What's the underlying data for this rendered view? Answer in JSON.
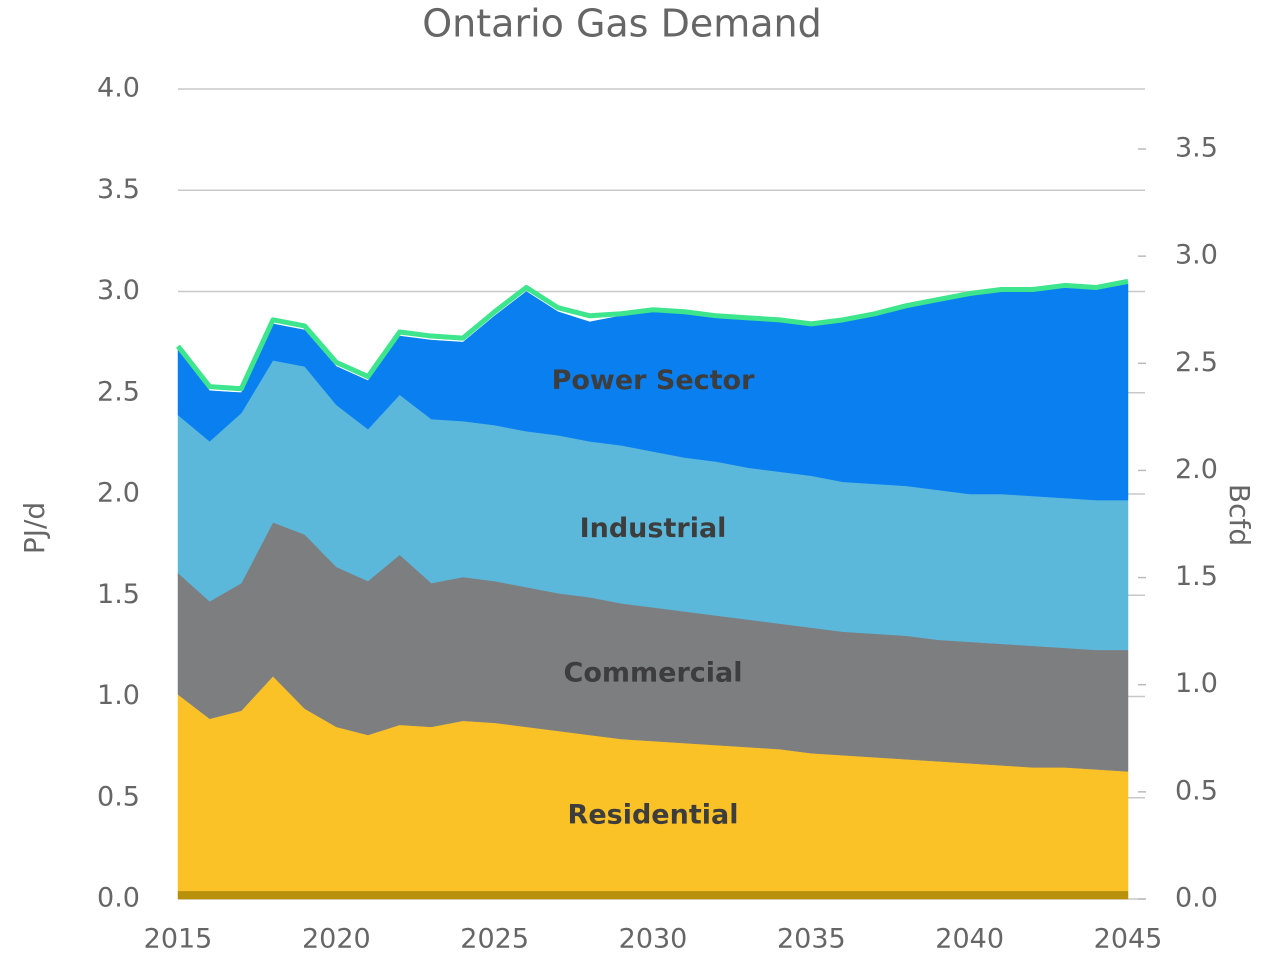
{
  "chart_data": {
    "type": "stacked_area",
    "title": "Ontario Gas Demand",
    "ylabel": "PJ/d",
    "y2label": "Bcfd",
    "x": [
      2015,
      2016,
      2017,
      2018,
      2019,
      2020,
      2021,
      2022,
      2023,
      2024,
      2025,
      2026,
      2027,
      2028,
      2029,
      2030,
      2031,
      2032,
      2033,
      2034,
      2035,
      2036,
      2037,
      2038,
      2039,
      2040,
      2041,
      2042,
      2043,
      2044,
      2045
    ],
    "xlim": [
      2015,
      2045
    ],
    "xticks": [
      2015,
      2020,
      2025,
      2030,
      2035,
      2040,
      2045
    ],
    "ylim": [
      0,
      4
    ],
    "yticks": [
      {
        "value": 0,
        "label": "0.0"
      },
      {
        "value": 0.5,
        "label": "0.5"
      },
      {
        "value": 1,
        "label": "1.0"
      },
      {
        "value": 1.5,
        "label": "1.5"
      },
      {
        "value": 2,
        "label": "2.0"
      },
      {
        "value": 2.5,
        "label": "2.5"
      },
      {
        "value": 3,
        "label": "3.0"
      },
      {
        "value": 3.5,
        "label": "3.5"
      },
      {
        "value": 4,
        "label": "4.0"
      }
    ],
    "y2lim": [
      0,
      3.78
    ],
    "y2ticks": [
      {
        "value": 0,
        "label": "0.0"
      },
      {
        "value": 0.5,
        "label": "0.5"
      },
      {
        "value": 1,
        "label": "1.0"
      },
      {
        "value": 1.5,
        "label": "1.5"
      },
      {
        "value": 2,
        "label": "2.0"
      },
      {
        "value": 2.5,
        "label": "2.5"
      },
      {
        "value": 3,
        "label": "3.0"
      },
      {
        "value": 3.5,
        "label": "3.5"
      }
    ],
    "grid": true,
    "series": [
      {
        "color": "#b8900a",
        "values": [
          0.04,
          0.04,
          0.04,
          0.04,
          0.04,
          0.04,
          0.04,
          0.04,
          0.04,
          0.04,
          0.04,
          0.04,
          0.04,
          0.04,
          0.04,
          0.04,
          0.04,
          0.04,
          0.04,
          0.04,
          0.04,
          0.04,
          0.04,
          0.04,
          0.04,
          0.04,
          0.04,
          0.04,
          0.04,
          0.04,
          0.04
        ]
      },
      {
        "name": "Residential",
        "color": "#fbc227",
        "values": [
          0.97,
          0.85,
          0.89,
          1.06,
          0.9,
          0.81,
          0.77,
          0.82,
          0.81,
          0.84,
          0.83,
          0.81,
          0.79,
          0.77,
          0.75,
          0.74,
          0.73,
          0.72,
          0.71,
          0.7,
          0.68,
          0.67,
          0.66,
          0.65,
          0.64,
          0.63,
          0.62,
          0.61,
          0.61,
          0.6,
          0.59
        ]
      },
      {
        "name": "Commercial",
        "color": "#7d7e80",
        "values": [
          0.6,
          0.58,
          0.63,
          0.76,
          0.86,
          0.79,
          0.76,
          0.84,
          0.71,
          0.71,
          0.7,
          0.69,
          0.68,
          0.68,
          0.67,
          0.66,
          0.65,
          0.64,
          0.63,
          0.62,
          0.62,
          0.61,
          0.61,
          0.61,
          0.6,
          0.6,
          0.6,
          0.6,
          0.59,
          0.59,
          0.6
        ]
      },
      {
        "name": "Industrial",
        "color": "#5bb8db",
        "values": [
          0.78,
          0.79,
          0.84,
          0.8,
          0.83,
          0.8,
          0.75,
          0.79,
          0.81,
          0.77,
          0.77,
          0.77,
          0.78,
          0.77,
          0.78,
          0.77,
          0.76,
          0.76,
          0.75,
          0.75,
          0.75,
          0.74,
          0.74,
          0.74,
          0.74,
          0.73,
          0.74,
          0.74,
          0.74,
          0.74,
          0.74
        ]
      },
      {
        "name": "Power Sector",
        "color": "#0a7ff0",
        "values": [
          0.32,
          0.25,
          0.1,
          0.18,
          0.18,
          0.19,
          0.24,
          0.29,
          0.39,
          0.39,
          0.54,
          0.69,
          0.61,
          0.59,
          0.64,
          0.69,
          0.71,
          0.71,
          0.73,
          0.74,
          0.74,
          0.79,
          0.83,
          0.88,
          0.93,
          0.98,
          1.0,
          1.01,
          1.04,
          1.04,
          1.07
        ]
      },
      {
        "kind": "line",
        "color": "#3de58c",
        "values": [
          2.73,
          2.53,
          2.52,
          2.86,
          2.83,
          2.65,
          2.58,
          2.8,
          2.78,
          2.77,
          2.9,
          3.02,
          2.92,
          2.88,
          2.89,
          2.91,
          2.9,
          2.88,
          2.87,
          2.86,
          2.84,
          2.86,
          2.89,
          2.93,
          2.96,
          2.99,
          3.01,
          3.01,
          3.03,
          3.02,
          3.05
        ]
      }
    ]
  }
}
